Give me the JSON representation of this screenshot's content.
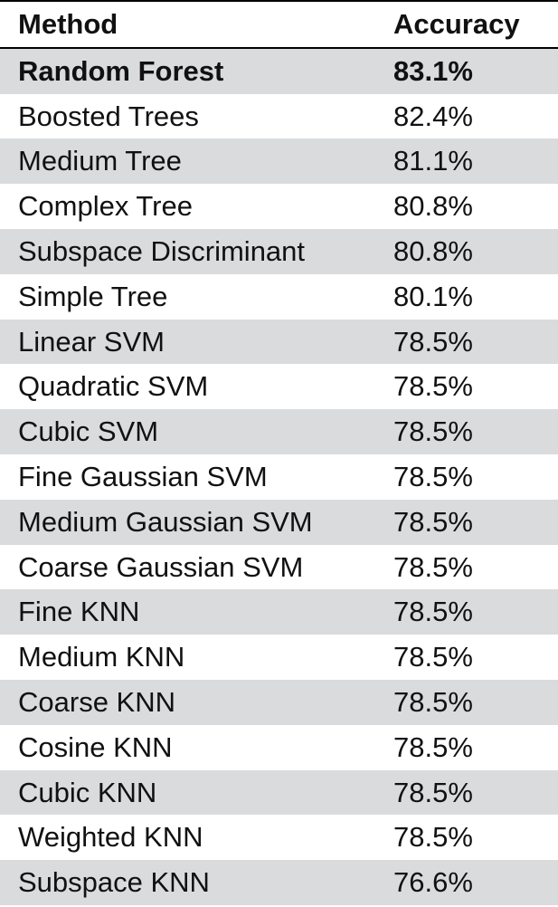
{
  "table": {
    "headers": {
      "method": "Method",
      "accuracy": "Accuracy"
    },
    "rows": [
      {
        "method": "Random Forest",
        "accuracy": "83.1%",
        "bold": true
      },
      {
        "method": "Boosted Trees",
        "accuracy": "82.4%"
      },
      {
        "method": "Medium Tree",
        "accuracy": "81.1%"
      },
      {
        "method": "Complex Tree",
        "accuracy": "80.8%"
      },
      {
        "method": "Subspace Discriminant",
        "accuracy": "80.8%"
      },
      {
        "method": "Simple Tree",
        "accuracy": "80.1%"
      },
      {
        "method": "Linear SVM",
        "accuracy": "78.5%"
      },
      {
        "method": "Quadratic SVM",
        "accuracy": "78.5%"
      },
      {
        "method": "Cubic SVM",
        "accuracy": "78.5%"
      },
      {
        "method": "Fine Gaussian SVM",
        "accuracy": "78.5%"
      },
      {
        "method": "Medium Gaussian SVM",
        "accuracy": "78.5%"
      },
      {
        "method": "Coarse Gaussian SVM",
        "accuracy": "78.5%"
      },
      {
        "method": "Fine KNN",
        "accuracy": "78.5%"
      },
      {
        "method": "Medium KNN",
        "accuracy": "78.5%"
      },
      {
        "method": "Coarse KNN",
        "accuracy": "78.5%"
      },
      {
        "method": "Cosine KNN",
        "accuracy": "78.5%"
      },
      {
        "method": "Cubic KNN",
        "accuracy": "78.5%"
      },
      {
        "method": "Weighted KNN",
        "accuracy": "78.5%"
      },
      {
        "method": "Subspace KNN",
        "accuracy": "76.6%"
      }
    ]
  },
  "colors": {
    "stripe": "#dadbdc",
    "background": "#ffffff",
    "text": "#111111",
    "rule": "#000000"
  }
}
